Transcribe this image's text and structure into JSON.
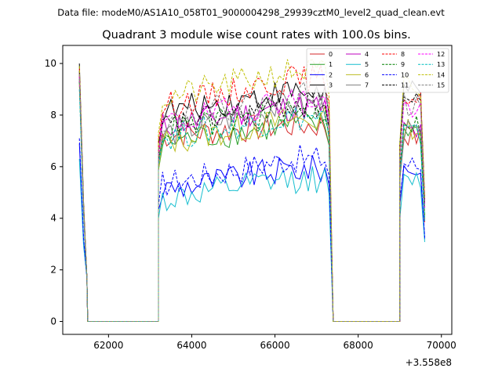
{
  "header": {
    "subtitle": "Data file: modeM0/AS1A10_058T01_9000004298_29939cztM0_level2_quad_clean.evt"
  },
  "chart_data": {
    "type": "line",
    "title": "Quadrant 3 module wise count rates with 100.0s bins.",
    "subtitle": "Data file: modeM0/AS1A10_058T01_9000004298_29939cztM0_level2_quad_clean.evt",
    "xlabel": "",
    "ylabel": "",
    "x_offset_label": "+3.558e8",
    "xlim": [
      60900,
      70250
    ],
    "ylim": [
      -0.5,
      10.7
    ],
    "x_ticks": [
      62000,
      64000,
      66000,
      68000,
      70000
    ],
    "x_tick_labels": [
      "62000",
      "64000",
      "66000",
      "68000",
      "70000"
    ],
    "y_ticks": [
      0,
      2,
      4,
      6,
      8,
      10
    ],
    "y_tick_labels": [
      "0",
      "2",
      "4",
      "6",
      "8",
      "10"
    ],
    "grid": false,
    "legend_position": "top-right",
    "segments": [
      {
        "x_start": 61300,
        "x_end": 61500,
        "points": 3
      },
      {
        "x_start": 63200,
        "x_end": 67300,
        "points": 42
      },
      {
        "x_start": 69000,
        "x_end": 69600,
        "points": 7
      }
    ],
    "zero_gaps": [
      [
        61500,
        63200
      ],
      [
        67300,
        69000
      ]
    ],
    "series": [
      {
        "name": "0",
        "color": "#d62728",
        "dash": "solid",
        "edge": [
          9.6,
          8.9
        ],
        "body": [
          7.2,
          7.6
        ],
        "tail": [
          7.3,
          7.0
        ]
      },
      {
        "name": "1",
        "color": "#2ca02c",
        "dash": "solid",
        "edge": [
          9.4,
          8.7
        ],
        "body": [
          6.9,
          7.6
        ],
        "tail": [
          7.6,
          7.1
        ]
      },
      {
        "name": "2",
        "color": "#0000ff",
        "dash": "solid",
        "edge": [
          6.9,
          6.3
        ],
        "body": [
          5.1,
          5.9
        ],
        "tail": [
          6.0,
          5.8
        ]
      },
      {
        "name": "3",
        "color": "#000000",
        "dash": "solid",
        "edge": [
          10.0,
          9.3
        ],
        "body": [
          8.1,
          8.9
        ],
        "tail": [
          9.1,
          8.6
        ]
      },
      {
        "name": "4",
        "color": "#bf00bf",
        "dash": "solid",
        "edge": [
          9.5,
          8.8
        ],
        "body": [
          7.6,
          8.3
        ],
        "tail": [
          7.5,
          7.2
        ]
      },
      {
        "name": "5",
        "color": "#17becf",
        "dash": "solid",
        "edge": [
          6.3,
          5.9
        ],
        "body": [
          4.7,
          5.5
        ],
        "tail": [
          5.3,
          5.6
        ]
      },
      {
        "name": "6",
        "color": "#bcbd22",
        "dash": "solid",
        "edge": [
          9.2,
          8.6
        ],
        "body": [
          6.9,
          7.8
        ],
        "tail": [
          7.6,
          7.3
        ]
      },
      {
        "name": "7",
        "color": "#7f7f7f",
        "dash": "solid",
        "edge": [
          9.4,
          8.8
        ],
        "body": [
          7.2,
          8.4
        ],
        "tail": [
          7.4,
          7.2
        ]
      },
      {
        "name": "8",
        "color": "#ff0000",
        "dash": "dashed",
        "edge": [
          9.8,
          9.1
        ],
        "body": [
          8.3,
          9.4
        ],
        "tail": [
          8.9,
          8.4
        ]
      },
      {
        "name": "9",
        "color": "#008000",
        "dash": "dashed",
        "edge": [
          9.3,
          8.7
        ],
        "body": [
          7.4,
          8.1
        ],
        "tail": [
          7.9,
          7.4
        ]
      },
      {
        "name": "10",
        "color": "#0000ff",
        "dash": "dashed",
        "edge": [
          7.1,
          6.5
        ],
        "body": [
          5.3,
          6.3
        ],
        "tail": [
          6.2,
          5.9
        ]
      },
      {
        "name": "11",
        "color": "#000000",
        "dash": "dashed",
        "edge": [
          9.7,
          9.0
        ],
        "body": [
          7.5,
          8.4
        ],
        "tail": [
          8.7,
          8.3
        ]
      },
      {
        "name": "12",
        "color": "#ff00ff",
        "dash": "dashed",
        "edge": [
          9.5,
          8.9
        ],
        "body": [
          7.6,
          8.6
        ],
        "tail": [
          8.4,
          8.0
        ]
      },
      {
        "name": "13",
        "color": "#00bfbf",
        "dash": "dashed",
        "edge": [
          9.0,
          8.4
        ],
        "body": [
          7.1,
          7.9
        ],
        "tail": [
          7.4,
          7.1
        ]
      },
      {
        "name": "14",
        "color": "#bfbf00",
        "dash": "dashed",
        "edge": [
          9.9,
          9.2
        ],
        "body": [
          8.6,
          9.7
        ],
        "tail": [
          9.2,
          8.7
        ]
      },
      {
        "name": "15",
        "color": "#808080",
        "dash": "dashed",
        "edge": [
          9.6,
          8.9
        ],
        "body": [
          7.8,
          8.8
        ],
        "tail": [
          8.5,
          8.1
        ]
      }
    ]
  }
}
